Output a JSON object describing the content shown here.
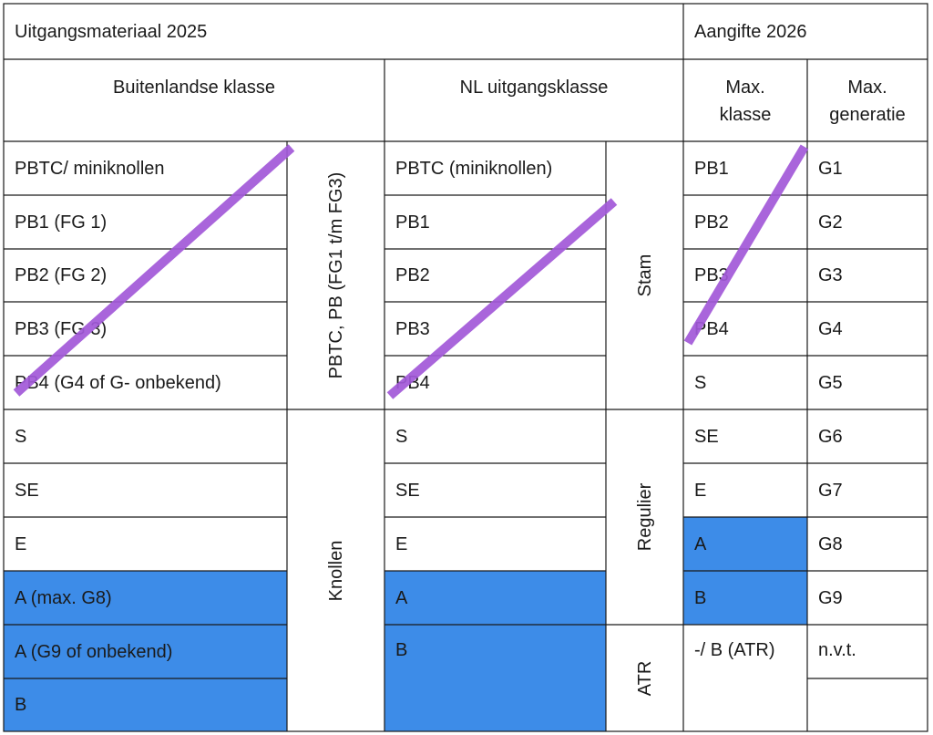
{
  "header": {
    "left_title": "Uitgangsmateriaal 2025",
    "right_title": "Aangifte 2026"
  },
  "subheaders": {
    "foreign": "Buitenlandse klasse",
    "nl": "NL uitgangsklasse",
    "max_klasse_line1": "Max.",
    "max_klasse_line2": "klasse",
    "max_generatie_line1": "Max.",
    "max_generatie_line2": "generatie"
  },
  "foreign_classes": [
    "PBTC/ miniknollen",
    "PB1 (FG 1)",
    "PB2 (FG 2)",
    "PB3 (FG 3)",
    "PB4 (G4 of G- onbekend)",
    "S",
    "SE",
    "E",
    "A (max. G8)",
    "A (G9 of onbekend)",
    "B"
  ],
  "foreign_groups": {
    "pb": "PBTC, PB (FG1 t/m FG3)",
    "knollen": "Knollen"
  },
  "nl_classes": [
    "PBTC (miniknollen)",
    "PB1",
    "PB2",
    "PB3",
    "PB4",
    "S",
    "SE",
    "E",
    "A",
    "B"
  ],
  "nl_groups": {
    "stam": "Stam",
    "regulier": "Regulier",
    "atr": "ATR"
  },
  "max_klasse": [
    "PB1",
    "PB2",
    "PB3",
    "PB4",
    "S",
    "SE",
    "E",
    "A",
    "B",
    "-/ B (ATR)"
  ],
  "max_generatie": [
    "G1",
    "G2",
    "G3",
    "G4",
    "G5",
    "G6",
    "G7",
    "G8",
    "G9",
    "n.v.t.",
    ""
  ],
  "colors": {
    "highlight_blue": "#3d8ce8",
    "strike_purple": "#a259d9",
    "border": "#1a1a1a"
  }
}
